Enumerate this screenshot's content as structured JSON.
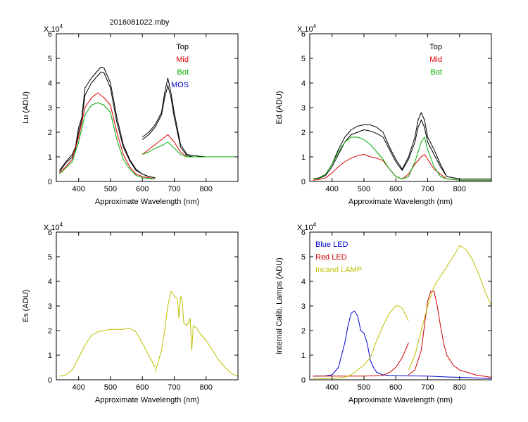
{
  "figure_title": "2016081022.mby",
  "chart_data": [
    {
      "type": "line",
      "id": "lu",
      "ylabel": "Lu (ADU)",
      "xlabel": "Approximate Wavelength (nm)",
      "exponent_label": "X 10",
      "exponent": "4",
      "xlim": [
        330,
        900
      ],
      "ylim": [
        0,
        6
      ],
      "xticks": [
        400,
        500,
        600,
        700,
        800
      ],
      "yticks": [
        0,
        1,
        2,
        3,
        4,
        5,
        6
      ],
      "legend": [
        {
          "label": "Top",
          "color": "#000000"
        },
        {
          "label": "Mid",
          "color": "#dd0000"
        },
        {
          "label": "Bot",
          "color": "#00aa00"
        },
        {
          "label": "MOS",
          "color": "#0000cc"
        }
      ],
      "series": [
        {
          "name": "Top",
          "color": "#000000",
          "x": [
            340,
            360,
            380,
            390,
            400,
            410,
            420,
            440,
            460,
            470,
            480,
            500,
            520,
            540,
            560,
            580,
            600,
            620,
            640,
            null,
            600,
            620,
            640,
            660,
            670,
            680,
            690,
            700,
            720,
            740,
            760,
            800,
            850,
            900
          ],
          "y": [
            0.45,
            0.8,
            1.1,
            1.4,
            2.2,
            2.6,
            3.8,
            4.2,
            4.5,
            4.65,
            4.6,
            4.0,
            2.6,
            1.5,
            0.9,
            0.5,
            0.3,
            0.2,
            0.15,
            null,
            1.8,
            2.0,
            2.3,
            2.8,
            3.6,
            4.2,
            3.6,
            2.8,
            1.5,
            1.1,
            1.05,
            1.0,
            1.0,
            1.0
          ]
        },
        {
          "name": "Top-2",
          "color": "#000000",
          "x": [
            340,
            360,
            380,
            390,
            400,
            410,
            420,
            440,
            460,
            470,
            480,
            500,
            520,
            540,
            560,
            580,
            600,
            620,
            640,
            null,
            600,
            620,
            640,
            660,
            670,
            680,
            690,
            700,
            720,
            740,
            760,
            800,
            850,
            900
          ],
          "y": [
            0.4,
            0.75,
            1.0,
            1.3,
            2.0,
            2.5,
            3.5,
            4.0,
            4.3,
            4.45,
            4.4,
            3.8,
            2.4,
            1.4,
            0.85,
            0.45,
            0.3,
            0.2,
            0.15,
            null,
            1.7,
            1.9,
            2.2,
            2.7,
            3.4,
            3.9,
            3.4,
            2.6,
            1.4,
            1.05,
            1.0,
            1.0,
            1.0,
            1.0
          ]
        },
        {
          "name": "Mid",
          "color": "#dd0000",
          "x": [
            340,
            360,
            380,
            400,
            420,
            440,
            460,
            480,
            500,
            520,
            540,
            560,
            580,
            600,
            620,
            640,
            null,
            600,
            620,
            640,
            660,
            680,
            700,
            720,
            740,
            760,
            800,
            850,
            900
          ],
          "y": [
            0.35,
            0.6,
            0.9,
            1.8,
            3.0,
            3.4,
            3.6,
            3.4,
            3.1,
            2.0,
            1.1,
            0.6,
            0.3,
            0.2,
            0.15,
            0.1,
            null,
            1.1,
            1.3,
            1.5,
            1.7,
            1.9,
            1.6,
            1.2,
            1.0,
            1.0,
            1.0,
            1.0,
            1.0
          ]
        },
        {
          "name": "Bot",
          "color": "#00aa00",
          "x": [
            340,
            360,
            380,
            400,
            420,
            440,
            460,
            480,
            500,
            520,
            540,
            560,
            580,
            600,
            620,
            640,
            null,
            600,
            620,
            640,
            660,
            680,
            700,
            720,
            740,
            760,
            800,
            850,
            900
          ],
          "y": [
            0.3,
            0.55,
            0.8,
            1.6,
            2.7,
            3.1,
            3.2,
            3.1,
            2.8,
            1.7,
            0.9,
            0.5,
            0.25,
            0.15,
            0.12,
            0.1,
            null,
            1.1,
            1.2,
            1.35,
            1.45,
            1.6,
            1.35,
            1.1,
            1.0,
            1.0,
            1.0,
            1.0,
            1.0
          ]
        }
      ]
    },
    {
      "type": "line",
      "id": "ed",
      "ylabel": "Ed  (ADU)",
      "xlabel": "Approximate Wavelength (nm)",
      "exponent_label": "X 10",
      "exponent": "4",
      "xlim": [
        330,
        900
      ],
      "ylim": [
        0,
        6
      ],
      "xticks": [
        400,
        500,
        600,
        700,
        800
      ],
      "yticks": [
        0,
        1,
        2,
        3,
        4,
        5,
        6
      ],
      "legend": [
        {
          "label": "Top",
          "color": "#000000"
        },
        {
          "label": "Mid",
          "color": "#dd0000"
        },
        {
          "label": "Bot",
          "color": "#00aa00"
        }
      ],
      "series": [
        {
          "name": "Top",
          "color": "#000000",
          "x": [
            340,
            360,
            380,
            400,
            420,
            440,
            460,
            480,
            500,
            520,
            540,
            560,
            580,
            600,
            620,
            640,
            660,
            670,
            680,
            690,
            700,
            720,
            740,
            760,
            800,
            850,
            900
          ],
          "y": [
            0.1,
            0.15,
            0.3,
            0.7,
            1.3,
            1.8,
            2.1,
            2.25,
            2.3,
            2.3,
            2.2,
            2.0,
            1.4,
            0.9,
            0.5,
            1.0,
            1.8,
            2.5,
            2.8,
            2.5,
            1.8,
            1.3,
            0.7,
            0.2,
            0.1,
            0.1,
            0.1
          ]
        },
        {
          "name": "Top-2",
          "color": "#000000",
          "x": [
            340,
            360,
            380,
            400,
            420,
            440,
            460,
            480,
            500,
            520,
            540,
            560,
            580,
            600,
            620,
            640,
            660,
            670,
            680,
            690,
            700,
            720,
            740,
            760,
            800,
            850,
            900
          ],
          "y": [
            0.1,
            0.12,
            0.25,
            0.6,
            1.1,
            1.6,
            1.9,
            2.0,
            2.1,
            2.05,
            1.95,
            1.8,
            1.3,
            0.8,
            0.45,
            0.9,
            1.6,
            2.2,
            2.5,
            2.2,
            1.6,
            1.1,
            0.6,
            0.2,
            0.1,
            0.1,
            0.1
          ]
        },
        {
          "name": "Mid",
          "color": "#dd0000",
          "x": [
            340,
            360,
            380,
            400,
            420,
            440,
            460,
            480,
            500,
            520,
            540,
            560,
            580,
            600,
            620,
            640,
            660,
            680,
            690,
            700,
            720,
            740,
            760,
            800,
            850,
            900
          ],
          "y": [
            0.05,
            0.08,
            0.15,
            0.35,
            0.6,
            0.8,
            0.95,
            1.05,
            1.1,
            1.0,
            0.95,
            0.85,
            0.5,
            0.2,
            0.1,
            0.3,
            0.7,
            1.0,
            1.1,
            0.9,
            0.5,
            0.3,
            0.1,
            0.05,
            0.05,
            0.05
          ]
        },
        {
          "name": "Bot",
          "color": "#00aa00",
          "x": [
            340,
            360,
            380,
            400,
            420,
            440,
            460,
            480,
            500,
            520,
            540,
            560,
            580,
            600,
            620,
            640,
            660,
            680,
            690,
            700,
            720,
            740,
            760,
            800,
            850,
            900
          ],
          "y": [
            0.1,
            0.12,
            0.3,
            0.7,
            1.2,
            1.6,
            1.8,
            1.8,
            1.7,
            1.5,
            1.2,
            0.9,
            0.5,
            0.2,
            0.1,
            0.2,
            0.8,
            1.6,
            1.8,
            1.3,
            0.6,
            0.2,
            0.1,
            0.05,
            0.05,
            0.05
          ]
        }
      ]
    },
    {
      "type": "line",
      "id": "es",
      "ylabel": "Es  (ADU)",
      "xlabel": "Approximate Wavelength (nm)",
      "exponent_label": "X 10",
      "exponent": "4",
      "xlim": [
        330,
        900
      ],
      "ylim": [
        0,
        6
      ],
      "xticks": [
        400,
        500,
        600,
        700,
        800
      ],
      "yticks": [
        0,
        1,
        2,
        3,
        4,
        5,
        6
      ],
      "legend": [],
      "series": [
        {
          "name": "Es",
          "color": "#bfbf00",
          "x": [
            340,
            360,
            380,
            400,
            420,
            440,
            460,
            480,
            500,
            520,
            540,
            560,
            580,
            600,
            620,
            640,
            null,
            640,
            660,
            670,
            680,
            690,
            700,
            710,
            715,
            720,
            725,
            730,
            740,
            750,
            755,
            760,
            770,
            780,
            800,
            820,
            840,
            860,
            880,
            900
          ],
          "y": [
            0.15,
            0.2,
            0.4,
            0.9,
            1.4,
            1.8,
            1.95,
            2.0,
            2.05,
            2.05,
            2.05,
            2.1,
            1.95,
            1.5,
            1.0,
            0.5,
            null,
            0.3,
            1.2,
            2.0,
            3.0,
            3.6,
            3.4,
            3.3,
            2.5,
            3.4,
            3.2,
            2.3,
            2.2,
            2.5,
            1.2,
            2.2,
            2.1,
            1.9,
            1.6,
            1.2,
            0.8,
            0.5,
            0.25,
            0.15
          ]
        }
      ]
    },
    {
      "type": "line",
      "id": "lamps",
      "ylabel": "Internal Calib. Lamps (ADU)",
      "xlabel": "Approximate Wavelength (nm)",
      "exponent_label": "X 10",
      "exponent": "4",
      "xlim": [
        330,
        900
      ],
      "ylim": [
        0,
        6
      ],
      "xticks": [
        400,
        500,
        600,
        700,
        800
      ],
      "yticks": [
        0,
        1,
        2,
        3,
        4,
        5,
        6
      ],
      "legend": [
        {
          "label": "Blue LED",
          "color": "#0000cc"
        },
        {
          "label": "Red LED",
          "color": "#cc0000"
        },
        {
          "label": "Incand LAMP",
          "color": "#bfbf00"
        }
      ],
      "series": [
        {
          "name": "Blue LED",
          "color": "#0000cc",
          "x": [
            340,
            380,
            400,
            420,
            440,
            450,
            460,
            470,
            480,
            490,
            500,
            510,
            520,
            530,
            540,
            560,
            580,
            600,
            650,
            700,
            750,
            800,
            900
          ],
          "y": [
            0.15,
            0.16,
            0.2,
            0.5,
            1.5,
            2.2,
            2.7,
            2.8,
            2.6,
            2.0,
            1.9,
            1.5,
            0.8,
            0.5,
            0.3,
            0.2,
            0.18,
            0.17,
            0.16,
            0.15,
            0.12,
            0.1,
            0.05
          ]
        },
        {
          "name": "Red LED",
          "color": "#cc0000",
          "x": [
            340,
            400,
            500,
            560,
            580,
            600,
            620,
            640,
            null,
            640,
            660,
            680,
            690,
            700,
            710,
            720,
            730,
            740,
            750,
            760,
            780,
            800,
            850,
            900
          ],
          "y": [
            0.15,
            0.15,
            0.15,
            0.18,
            0.3,
            0.5,
            0.9,
            1.5,
            null,
            0.2,
            0.4,
            1.2,
            2.2,
            3.2,
            3.6,
            3.6,
            3.0,
            2.2,
            1.5,
            1.0,
            0.6,
            0.4,
            0.2,
            0.1
          ]
        },
        {
          "name": "Incand LAMP",
          "color": "#bfbf00",
          "x": [
            340,
            400,
            440,
            460,
            480,
            500,
            520,
            540,
            560,
            580,
            600,
            610,
            620,
            640,
            null,
            640,
            660,
            680,
            700,
            720,
            740,
            760,
            780,
            800,
            820,
            840,
            860,
            880,
            900
          ],
          "y": [
            0.05,
            0.05,
            0.1,
            0.2,
            0.4,
            0.6,
            0.9,
            1.6,
            2.2,
            2.7,
            3.0,
            3.0,
            2.9,
            2.4,
            null,
            0.4,
            1.0,
            2.0,
            3.0,
            3.8,
            4.2,
            4.6,
            5.0,
            5.45,
            5.3,
            4.9,
            4.3,
            3.6,
            3.0
          ]
        }
      ]
    }
  ]
}
